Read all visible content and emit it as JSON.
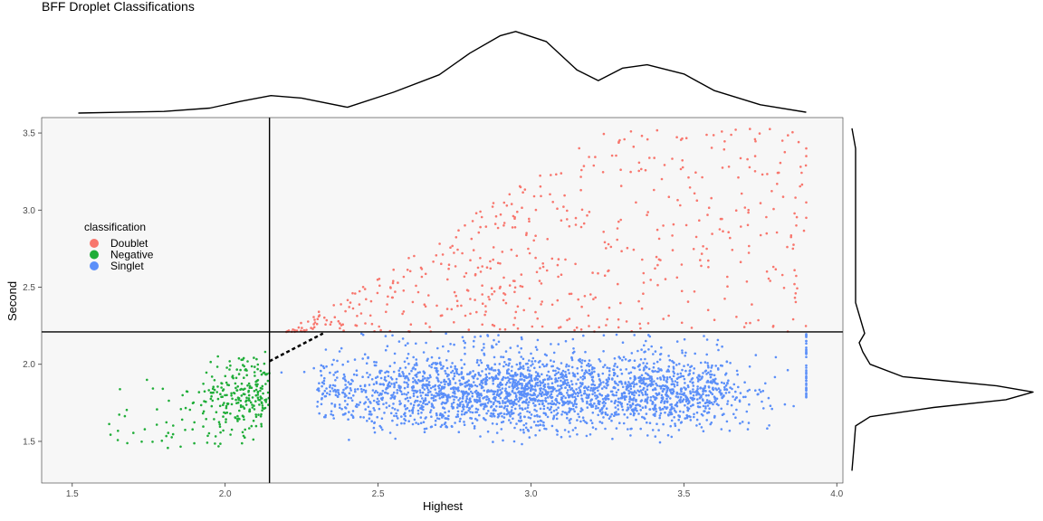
{
  "chart_data": {
    "type": "scatter",
    "title": "BFF Droplet Classifications",
    "xlabel": "Highest",
    "ylabel": "Second",
    "xlim": [
      1.4,
      4.02
    ],
    "ylim": [
      1.23,
      3.6
    ],
    "x_ticks": [
      "1.5",
      "2.0",
      "2.5",
      "3.0",
      "3.5",
      "4.0"
    ],
    "y_ticks": [
      "1.5",
      "2.0",
      "2.5",
      "3.0",
      "3.5"
    ],
    "grid": false,
    "background": "#f7f7f7",
    "vertical_threshold_x": 2.145,
    "horizontal_threshold_y": 2.21,
    "dashed_boundary": [
      [
        2.145,
        2.02
      ],
      [
        2.32,
        2.2
      ]
    ],
    "legend": {
      "title": "classification",
      "placement": "left",
      "entries": [
        {
          "label": "Doublet",
          "color": "#f8766d"
        },
        {
          "label": "Negative",
          "color": "#1fad38"
        },
        {
          "label": "Singlet",
          "color": "#5b8ff9"
        }
      ]
    },
    "series": [
      {
        "name": "Doublet",
        "color": "#f8766d",
        "cluster_summary": {
          "x_range": [
            2.14,
            3.9
          ],
          "y_range": [
            2.21,
            3.53
          ]
        }
      },
      {
        "name": "Negative",
        "color": "#1fad38",
        "cluster_summary": {
          "x_range": [
            1.52,
            2.15
          ],
          "y_range": [
            1.31,
            2.14
          ]
        }
      },
      {
        "name": "Singlet",
        "color": "#5b8ff9",
        "cluster_summary": {
          "x_range": [
            2.14,
            3.9
          ],
          "y_range": [
            1.31,
            2.21
          ]
        }
      }
    ],
    "marginal_density_x": {
      "x": [
        1.52,
        1.8,
        1.95,
        2.05,
        2.15,
        2.25,
        2.4,
        2.55,
        2.7,
        2.8,
        2.9,
        2.95,
        3.05,
        3.15,
        3.22,
        3.3,
        3.38,
        3.5,
        3.6,
        3.75,
        3.9
      ],
      "density": [
        0.0,
        0.02,
        0.06,
        0.14,
        0.21,
        0.18,
        0.07,
        0.25,
        0.46,
        0.72,
        0.93,
        0.98,
        0.86,
        0.52,
        0.39,
        0.54,
        0.58,
        0.47,
        0.27,
        0.1,
        0.01
      ]
    },
    "marginal_density_y": {
      "y": [
        1.31,
        1.45,
        1.6,
        1.66,
        1.72,
        1.77,
        1.82,
        1.86,
        1.92,
        2.0,
        2.08,
        2.14,
        2.2,
        2.28,
        2.4,
        2.6,
        2.8,
        3.0,
        3.2,
        3.4,
        3.53
      ],
      "density": [
        0.0,
        0.01,
        0.02,
        0.1,
        0.45,
        0.85,
        1.0,
        0.8,
        0.28,
        0.1,
        0.06,
        0.04,
        0.07,
        0.05,
        0.02,
        0.02,
        0.02,
        0.02,
        0.02,
        0.02,
        0.0
      ]
    }
  }
}
